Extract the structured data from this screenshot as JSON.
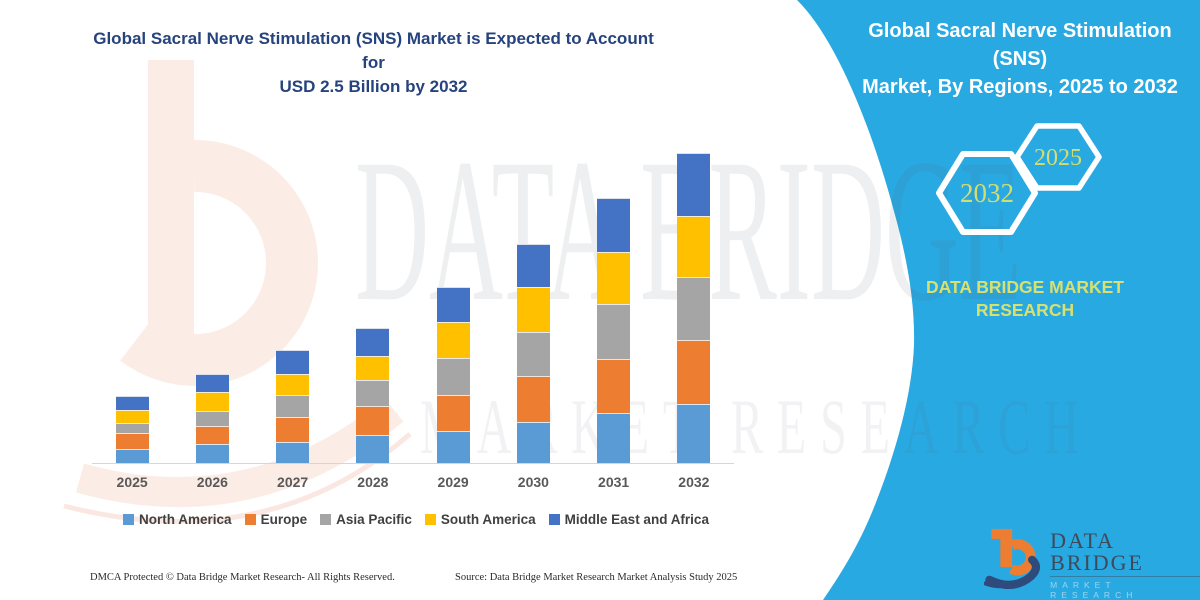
{
  "header": {
    "title_line1": "Global Sacral Nerve Stimulation (SNS) Market is Expected to Account for",
    "title_line2": "USD 2.5 Billion by 2032"
  },
  "chart_data": {
    "type": "bar",
    "stacked": true,
    "title": "Global Sacral Nerve Stimulation (SNS) Market is Expected to Account for USD 2.5 Billion by 2032",
    "categories": [
      "2025",
      "2026",
      "2027",
      "2028",
      "2029",
      "2030",
      "2031",
      "2032"
    ],
    "series": [
      {
        "name": "North America",
        "color": "#5B9BD5",
        "values": [
          0.11,
          0.15,
          0.17,
          0.23,
          0.26,
          0.33,
          0.4,
          0.48
        ]
      },
      {
        "name": "Europe",
        "color": "#ED7D31",
        "values": [
          0.13,
          0.15,
          0.2,
          0.23,
          0.29,
          0.37,
          0.44,
          0.51
        ]
      },
      {
        "name": "Asia Pacific",
        "color": "#A5A5A5",
        "values": [
          0.08,
          0.12,
          0.18,
          0.21,
          0.3,
          0.36,
          0.44,
          0.51
        ]
      },
      {
        "name": "South America",
        "color": "#FFC000",
        "values": [
          0.11,
          0.15,
          0.17,
          0.19,
          0.29,
          0.36,
          0.42,
          0.49
        ]
      },
      {
        "name": "Middle East and Africa",
        "color": "#4472C4",
        "values": [
          0.11,
          0.15,
          0.19,
          0.23,
          0.28,
          0.35,
          0.44,
          0.51
        ]
      }
    ],
    "totals_estimated": [
      0.54,
      0.72,
      0.91,
      1.09,
      1.42,
      1.77,
      2.14,
      2.5
    ],
    "value_unit": "USD Billion (estimated from bar heights; 2032 total stated as 2.5)",
    "ylim": [
      0,
      2.6
    ],
    "gridlines": false,
    "y_axis_shown": false,
    "legend_position": "bottom"
  },
  "side_panel": {
    "title_line1": "Global Sacral Nerve Stimulation (SNS)",
    "title_line2": "Market, By Regions, 2025 to 2032",
    "hexagons": [
      {
        "label": "2032"
      },
      {
        "label": "2025"
      }
    ],
    "brand_text": "DATA BRIDGE MARKET RESEARCH",
    "colors": {
      "background": "#29A9E1",
      "accent_text": "#D9E06E",
      "hex_border": "#FFFFFF"
    }
  },
  "logo": {
    "name": "DATA BRIDGE",
    "subtitle": "MARKET RESEARCH",
    "icon_orange": "#ED7D31",
    "icon_navy": "#2F4B7C"
  },
  "watermark": {
    "line1": "DATA BRIDGE",
    "line2": "MARKET RESEARCH"
  },
  "footer": {
    "left": "DMCA Protected © Data Bridge Market Research-  All Rights Reserved.",
    "source": "Source: Data Bridge Market Research  Market Analysis Study 2025"
  }
}
